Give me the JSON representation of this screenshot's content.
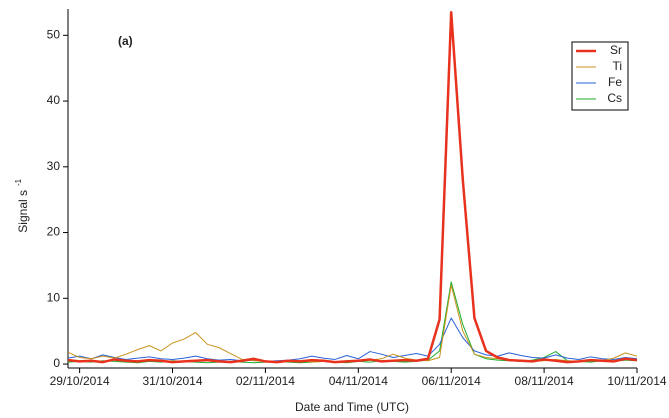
{
  "chart_data": {
    "type": "line",
    "annotation": "(a)",
    "xlabel": "Date and Time (UTC)",
    "ylabel": "Signal s",
    "ylabel_superscript": "-1",
    "x": [
      "2014-10-28 18:00",
      "2014-10-29 00:00",
      "2014-10-29 06:00",
      "2014-10-29 12:00",
      "2014-10-29 18:00",
      "2014-10-30 00:00",
      "2014-10-30 06:00",
      "2014-10-30 12:00",
      "2014-10-30 18:00",
      "2014-10-31 00:00",
      "2014-10-31 06:00",
      "2014-10-31 12:00",
      "2014-10-31 18:00",
      "2014-11-01 00:00",
      "2014-11-01 06:00",
      "2014-11-01 12:00",
      "2014-11-01 18:00",
      "2014-11-02 00:00",
      "2014-11-02 06:00",
      "2014-11-02 12:00",
      "2014-11-02 18:00",
      "2014-11-03 00:00",
      "2014-11-03 06:00",
      "2014-11-03 12:00",
      "2014-11-03 18:00",
      "2014-11-04 00:00",
      "2014-11-04 06:00",
      "2014-11-04 12:00",
      "2014-11-04 18:00",
      "2014-11-05 00:00",
      "2014-11-05 06:00",
      "2014-11-05 12:00",
      "2014-11-05 18:00",
      "2014-11-06 00:00",
      "2014-11-06 06:00",
      "2014-11-06 12:00",
      "2014-11-06 18:00",
      "2014-11-07 00:00",
      "2014-11-07 06:00",
      "2014-11-07 12:00",
      "2014-11-07 18:00",
      "2014-11-08 00:00",
      "2014-11-08 06:00",
      "2014-11-08 12:00",
      "2014-11-08 18:00",
      "2014-11-09 00:00",
      "2014-11-09 06:00",
      "2014-11-09 12:00",
      "2014-11-09 18:00",
      "2014-11-10 00:00"
    ],
    "series": [
      {
        "name": "Sr",
        "color": "#e8321e",
        "width": 2.5,
        "values": [
          0.6,
          0.4,
          0.5,
          0.3,
          0.7,
          0.5,
          0.4,
          0.6,
          0.5,
          0.3,
          0.4,
          0.5,
          0.6,
          0.4,
          0.3,
          0.5,
          0.8,
          0.4,
          0.3,
          0.5,
          0.4,
          0.6,
          0.5,
          0.3,
          0.4,
          0.5,
          0.7,
          0.4,
          0.5,
          0.6,
          0.5,
          0.8,
          6.8,
          53.5,
          28,
          7,
          2,
          1,
          0.6,
          0.5,
          0.4,
          0.7,
          0.5,
          0.3,
          0.4,
          0.6,
          0.5,
          0.4,
          0.8,
          0.6
        ]
      },
      {
        "name": "Ti",
        "color": "#c8941e",
        "width": 1,
        "values": [
          1.8,
          1,
          0.8,
          1.2,
          0.9,
          1.5,
          2.2,
          2.8,
          2,
          3.2,
          3.8,
          4.8,
          3,
          2.5,
          1.6,
          0.7,
          0.5,
          0.4,
          0.3,
          0.4,
          0.5,
          0.3,
          0.4,
          0.3,
          0.5,
          0.4,
          0.6,
          0.8,
          1.5,
          0.9,
          0.6,
          0.5,
          1,
          12,
          5,
          1.5,
          1,
          0.8,
          0.6,
          0.5,
          0.4,
          0.5,
          0.7,
          0.5,
          0.4,
          0.6,
          0.5,
          0.9,
          1.7,
          1.2
        ]
      },
      {
        "name": "Fe",
        "color": "#2a62d8",
        "width": 1,
        "values": [
          0.9,
          1.2,
          0.8,
          1.4,
          1,
          0.7,
          0.9,
          1.1,
          0.8,
          0.7,
          0.9,
          1.2,
          0.8,
          0.6,
          0.7,
          0.5,
          0.6,
          0.4,
          0.5,
          0.6,
          0.8,
          1.2,
          0.9,
          0.7,
          1.3,
          0.8,
          1.9,
          1.5,
          1,
          1.3,
          1.6,
          1.2,
          3,
          7,
          4,
          2,
          1.4,
          1.2,
          1.7,
          1.3,
          1,
          0.9,
          1.4,
          0.9,
          0.7,
          1.1,
          0.8,
          0.7,
          1,
          0.8
        ]
      },
      {
        "name": "Cs",
        "color": "#1fae2c",
        "width": 1,
        "values": [
          0.3,
          0.4,
          0.3,
          0.5,
          0.4,
          0.3,
          0.2,
          0.4,
          0.3,
          0.5,
          0.4,
          0.3,
          0.2,
          0.3,
          0.4,
          0.3,
          0.2,
          0.3,
          0.4,
          0.3,
          0.2,
          0.3,
          0.4,
          0.3,
          0.2,
          0.4,
          0.3,
          0.5,
          0.4,
          0.3,
          0.4,
          0.6,
          2,
          12.5,
          6,
          1.5,
          0.8,
          0.6,
          0.5,
          0.4,
          0.6,
          1,
          1.9,
          0.5,
          0.4,
          0.3,
          0.5,
          0.4,
          0.6,
          0.5
        ]
      }
    ],
    "xlim": [
      "2014-10-28 18:00",
      "2014-11-10 00:00"
    ],
    "xticks": [
      {
        "value": "2014-10-29 00:00",
        "label": "29/10/2014"
      },
      {
        "value": "2014-10-31 00:00",
        "label": "31/10/2014"
      },
      {
        "value": "2014-11-02 00:00",
        "label": "02/11/2014"
      },
      {
        "value": "2014-11-04 00:00",
        "label": "04/11/2014"
      },
      {
        "value": "2014-11-06 00:00",
        "label": "06/11/2014"
      },
      {
        "value": "2014-11-08 00:00",
        "label": "08/11/2014"
      },
      {
        "value": "2014-11-10 00:00",
        "label": "10/11/2014"
      }
    ],
    "ylim": [
      -0.6,
      54
    ],
    "yticks": [
      0,
      10,
      20,
      30,
      40,
      50
    ],
    "legend": "top-right"
  }
}
